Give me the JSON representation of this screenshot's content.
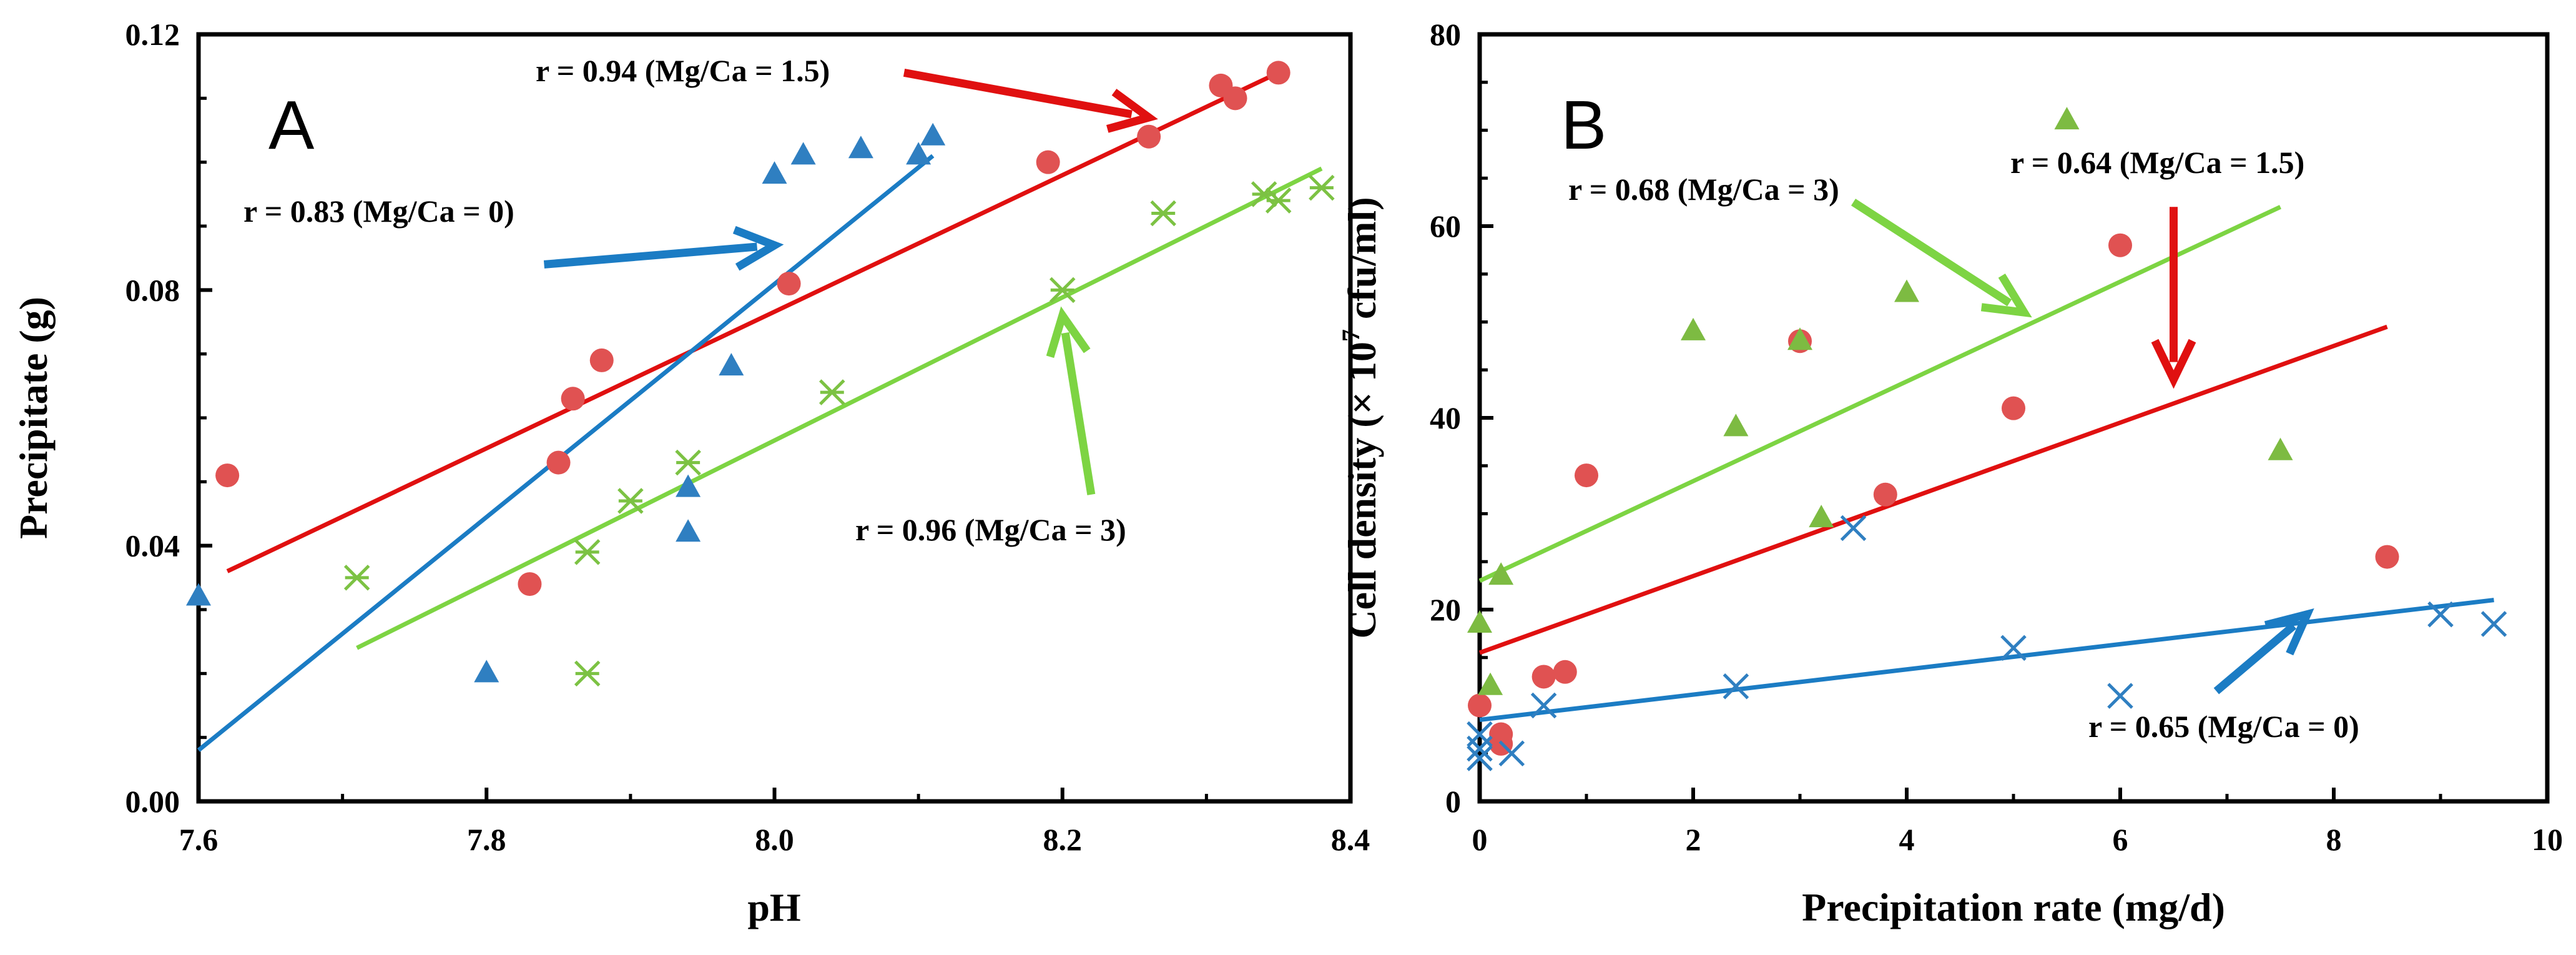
{
  "chart_data": [
    {
      "type": "scatter",
      "panel_label": "A",
      "xlabel": "pH",
      "ylabel": "Precipitate (g)",
      "xlim": [
        7.6,
        8.4
      ],
      "ylim": [
        0.0,
        0.12
      ],
      "xticks": [
        7.6,
        7.8,
        8.0,
        8.2,
        8.4
      ],
      "xtick_labels": [
        "7.6",
        "7.8",
        "8.0",
        "8.2",
        "8.4"
      ],
      "yticks": [
        0.0,
        0.04,
        0.08,
        0.12
      ],
      "ytick_labels": [
        "0.00",
        "0.04",
        "0.08",
        "0.12"
      ],
      "grid": false,
      "series": [
        {
          "name": "Mg/Ca = 1.5",
          "marker": "circle",
          "color": "#e05252",
          "line_color": "#e01010",
          "x": [
            7.62,
            7.83,
            7.85,
            7.86,
            7.88,
            8.01,
            8.19,
            8.26,
            8.31,
            8.32,
            8.35
          ],
          "y": [
            0.051,
            0.034,
            0.053,
            0.063,
            0.069,
            0.081,
            0.1,
            0.104,
            0.112,
            0.11,
            0.114
          ],
          "fit": {
            "x": [
              7.62,
              8.35
            ],
            "y": [
              0.036,
              0.114
            ]
          }
        },
        {
          "name": "Mg/Ca = 0",
          "marker": "triangle",
          "color": "#2f7fc1",
          "line_color": "#1b7cc4",
          "x": [
            7.6,
            7.8,
            7.94,
            7.94,
            7.97,
            8.0,
            8.02,
            8.06,
            8.1,
            8.11
          ],
          "y": [
            0.032,
            0.02,
            0.042,
            0.049,
            0.068,
            0.098,
            0.101,
            0.102,
            0.101,
            0.104
          ],
          "fit": {
            "x": [
              7.6,
              8.11
            ],
            "y": [
              0.008,
              0.101
            ]
          }
        },
        {
          "name": "Mg/Ca = 3",
          "marker": "asterisk",
          "color": "#7cc243",
          "line_color": "#7dd443",
          "x": [
            7.71,
            7.87,
            7.87,
            7.9,
            7.94,
            8.04,
            8.2,
            8.27,
            8.34,
            8.35,
            8.38
          ],
          "y": [
            0.035,
            0.039,
            0.02,
            0.047,
            0.053,
            0.064,
            0.08,
            0.092,
            0.095,
            0.094,
            0.096
          ],
          "fit": {
            "x": [
              7.71,
              8.38
            ],
            "y": [
              0.024,
              0.099
            ]
          }
        }
      ],
      "annotations": [
        {
          "text": "r = 0.94 (Mg/Ca = 1.5)",
          "series": "Mg/Ca = 1.5",
          "arrow_to": [
            8.26,
            0.107
          ],
          "arrow_from": [
            8.09,
            0.114
          ]
        },
        {
          "text": "r = 0.83 (Mg/Ca = 0)",
          "series": "Mg/Ca = 0",
          "arrow_to": [
            8.0,
            0.087
          ],
          "arrow_from": [
            7.84,
            0.084
          ]
        },
        {
          "text": "r = 0.96 (Mg/Ca = 3)",
          "series": "Mg/Ca = 3",
          "arrow_to": [
            8.2,
            0.076
          ],
          "arrow_from": [
            8.22,
            0.048
          ]
        }
      ]
    },
    {
      "type": "scatter",
      "panel_label": "B",
      "xlabel": "Precipitation rate (mg/d)",
      "ylabel_parts": [
        "Cell density (× 10",
        "7",
        " cfu/ml)"
      ],
      "xlim": [
        0,
        10
      ],
      "ylim": [
        0,
        80
      ],
      "xticks": [
        0,
        2,
        4,
        6,
        8,
        10
      ],
      "xtick_labels": [
        "0",
        "2",
        "4",
        "6",
        "8",
        "10"
      ],
      "yticks": [
        0,
        20,
        40,
        60,
        80
      ],
      "ytick_labels": [
        "0",
        "20",
        "40",
        "60",
        "80"
      ],
      "grid": false,
      "series": [
        {
          "name": "Mg/Ca = 1.5",
          "marker": "circle",
          "color": "#e05252",
          "line_color": "#e01010",
          "x": [
            0.0,
            0.2,
            0.2,
            0.6,
            0.8,
            1.0,
            3.0,
            3.8,
            5.0,
            6.0,
            8.5
          ],
          "y": [
            10,
            7,
            6,
            13,
            13.5,
            34,
            48,
            32,
            41,
            58,
            25.5
          ],
          "fit": {
            "x": [
              0.0,
              8.5
            ],
            "y": [
              15.5,
              49.5
            ]
          }
        },
        {
          "name": "Mg/Ca = 3",
          "marker": "triangle",
          "color": "#7dbb42",
          "line_color": "#7dd443",
          "x": [
            0.0,
            0.1,
            0.2,
            2.0,
            2.4,
            3.0,
            3.2,
            4.0,
            5.5,
            7.5
          ],
          "y": [
            18.5,
            12,
            23.5,
            49,
            39,
            48,
            29.5,
            53,
            71,
            36.5
          ],
          "fit": {
            "x": [
              0.0,
              7.5
            ],
            "y": [
              23,
              62
            ]
          }
        },
        {
          "name": "Mg/Ca = 0",
          "marker": "cross",
          "color": "#2f7fc1",
          "line_color": "#1b7cc4",
          "x": [
            0.0,
            0.0,
            0.0,
            0.3,
            0.6,
            2.4,
            3.5,
            5.0,
            6.0,
            9.0,
            9.5
          ],
          "y": [
            4.5,
            5.5,
            7,
            5,
            10,
            12,
            28.5,
            16,
            11,
            19.5,
            18.5
          ],
          "fit": {
            "x": [
              0.0,
              9.5
            ],
            "y": [
              8.5,
              21
            ]
          }
        }
      ],
      "annotations": [
        {
          "text": "r = 0.68 (Mg/Ca = 3)",
          "series": "Mg/Ca = 3",
          "arrow_to": [
            5.1,
            51
          ],
          "arrow_from": [
            3.5,
            62.5
          ]
        },
        {
          "text": "r = 0.64 (Mg/Ca = 1.5)",
          "series": "Mg/Ca = 1.5",
          "arrow_to": [
            6.5,
            44
          ],
          "arrow_from": [
            6.5,
            62
          ]
        },
        {
          "text": "r = 0.65 (Mg/Ca = 0)",
          "series": "Mg/Ca = 0",
          "arrow_to": [
            7.75,
            19.5
          ],
          "arrow_from": [
            6.9,
            11.5
          ]
        }
      ]
    }
  ]
}
